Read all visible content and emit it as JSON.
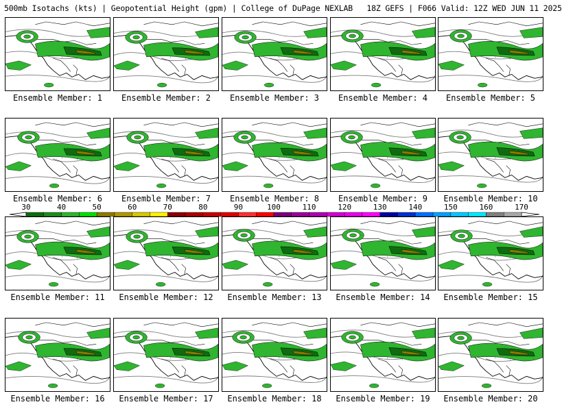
{
  "header": {
    "title": "500mb Isotachs (kts) | Geopotential Height (gpm) | College of DuPage NEXLAB   18Z GEFS | F066 Valid: 12Z WED JUN 11 2025"
  },
  "panels": [
    {
      "label": "Ensemble Member: 1"
    },
    {
      "label": "Ensemble Member: 2"
    },
    {
      "label": "Ensemble Member: 3"
    },
    {
      "label": "Ensemble Member: 4"
    },
    {
      "label": "Ensemble Member: 5"
    },
    {
      "label": "Ensemble Member: 6"
    },
    {
      "label": "Ensemble Member: 7"
    },
    {
      "label": "Ensemble Member: 8"
    },
    {
      "label": "Ensemble Member: 9"
    },
    {
      "label": "Ensemble Member: 10"
    },
    {
      "label": "Ensemble Member: 11"
    },
    {
      "label": "Ensemble Member: 12"
    },
    {
      "label": "Ensemble Member: 13"
    },
    {
      "label": "Ensemble Member: 14"
    },
    {
      "label": "Ensemble Member: 15"
    },
    {
      "label": "Ensemble Member: 16"
    },
    {
      "label": "Ensemble Member: 17"
    },
    {
      "label": "Ensemble Member: 18"
    },
    {
      "label": "Ensemble Member: 19"
    },
    {
      "label": "Ensemble Member: 20"
    }
  ],
  "colorbar": {
    "ticks": [
      "30",
      "40",
      "50",
      "60",
      "70",
      "80",
      "90",
      "100",
      "110",
      "120",
      "130",
      "140",
      "150",
      "160",
      "170"
    ],
    "colors": [
      "#0f6b0f",
      "#1e8c1e",
      "#2fb52f",
      "#00e000",
      "#8a7a00",
      "#b09800",
      "#d6c800",
      "#fff000",
      "#8a0000",
      "#a80000",
      "#c80000",
      "#e00000",
      "#ff3030",
      "#ff0000",
      "#7a007a",
      "#9a009a",
      "#b000b0",
      "#d000d0",
      "#e800e8",
      "#ff00ff",
      "#0000a0",
      "#0030d0",
      "#0070ff",
      "#00a0ff",
      "#00c8ff",
      "#00e8ff",
      "#808080",
      "#a8a8a8"
    ],
    "jet_colors": {
      "weak": "#2fb52f",
      "mid": "#0f6b0f",
      "core": "#8a7a00",
      "peak": "#b09800"
    }
  }
}
